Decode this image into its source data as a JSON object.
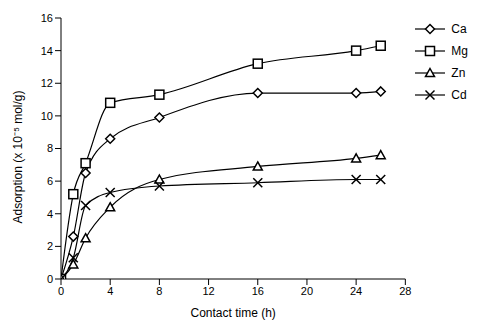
{
  "chart_data": {
    "type": "line",
    "x_label": "Contact time (h)",
    "y_label": "Adsorption (x 10⁻⁵ mol/g)",
    "x": [
      0,
      1,
      2,
      4,
      8,
      16,
      24,
      26
    ],
    "series": [
      {
        "name": "Ca",
        "color": "#000000",
        "marker": "diamond",
        "values": [
          0,
          2.6,
          6.5,
          8.6,
          9.9,
          11.4,
          11.4,
          11.5
        ]
      },
      {
        "name": "Mg",
        "color": "#000000",
        "marker": "square",
        "values": [
          0,
          5.2,
          7.1,
          10.8,
          11.3,
          13.2,
          14.0,
          14.3
        ]
      },
      {
        "name": "Zn",
        "color": "#000000",
        "marker": "triangle",
        "values": [
          0,
          0.9,
          2.5,
          4.4,
          6.1,
          6.9,
          7.4,
          7.6
        ]
      },
      {
        "name": "Cd",
        "color": "#000000",
        "marker": "x",
        "values": [
          0,
          1.3,
          4.5,
          5.3,
          5.7,
          5.9,
          6.1,
          6.1
        ]
      }
    ],
    "xlim": [
      0,
      28
    ],
    "xticks": [
      0,
      4,
      8,
      12,
      16,
      20,
      24,
      28
    ],
    "ylim": [
      0,
      16
    ],
    "yticks": [
      0,
      2,
      4,
      6,
      8,
      10,
      12,
      14,
      16
    ],
    "grid": false,
    "legend": "right"
  }
}
